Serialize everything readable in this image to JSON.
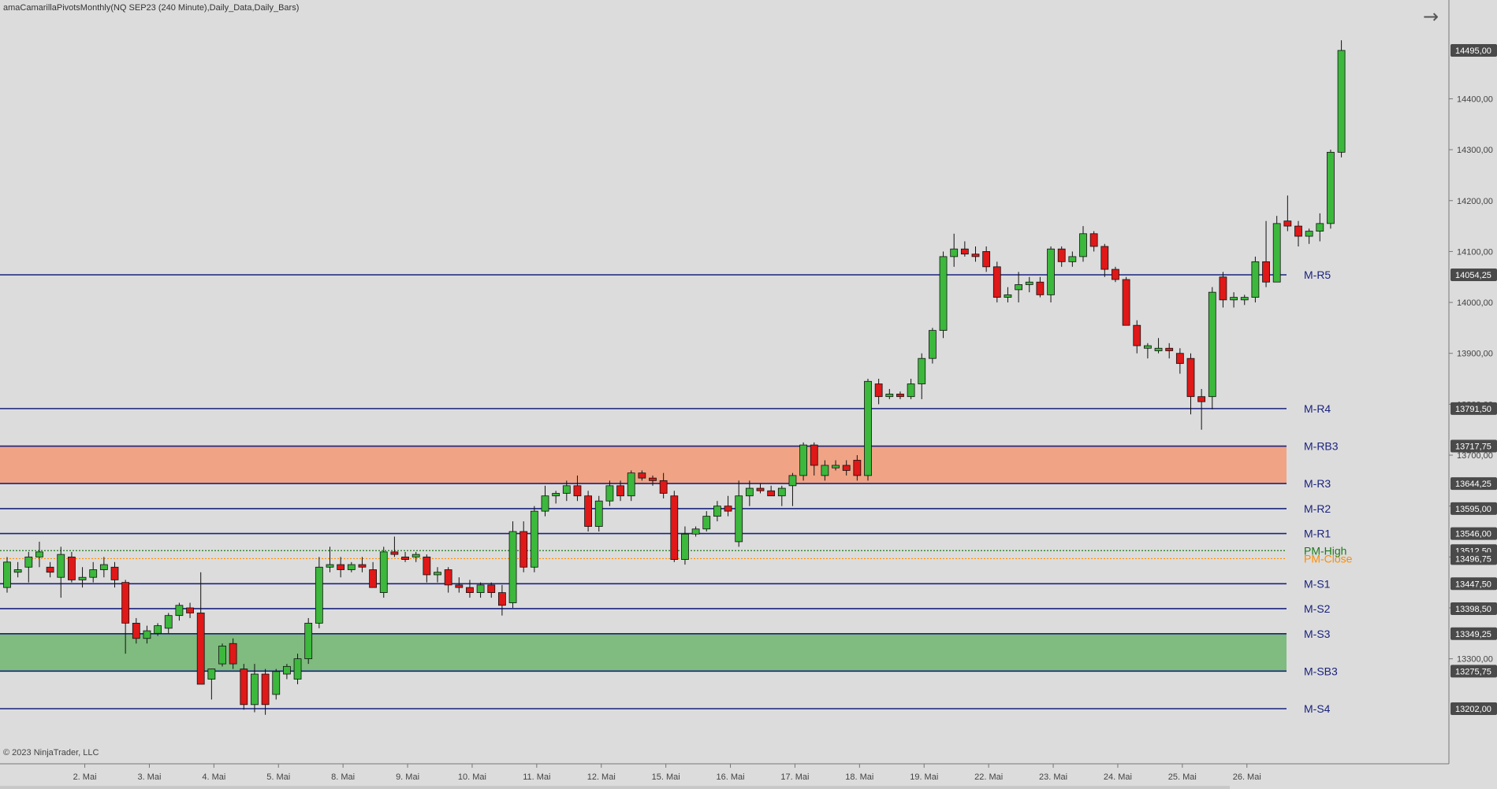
{
  "window": {
    "title": "amaCamarillaPivotsMonthly(NQ SEP23 (240 Minute),Daily_Data,Daily_Bars)",
    "copyright": "© 2023 NinjaTrader, LLC"
  },
  "icons": {
    "forward": "arrow-right-icon"
  },
  "colors": {
    "background": "#dcdcdc",
    "up_candle": "#3cb83c",
    "down_candle": "#e01818",
    "pivot_line": "#1a237e",
    "pivot_label": "#1a237e",
    "resistance_band": "#f0a080",
    "support_band": "#7ab87a",
    "pm_high": "#1a7a1a",
    "pm_close": "#ff8c00"
  },
  "chart_data": {
    "type": "candlestick",
    "title": "amaCamarillaPivotsMonthly(NQ SEP23 (240 Minute),Daily_Data,Daily_Bars)",
    "ylim": [
      13100,
      14560
    ],
    "y_ticks": [
      "13300,00",
      "13400,00",
      "13500,00",
      "13600,00",
      "13700,00",
      "13800,00",
      "13900,00",
      "14000,00",
      "14100,00",
      "14200,00",
      "14300,00",
      "14400,00"
    ],
    "y_tick_values": [
      13300,
      13400,
      13500,
      13600,
      13700,
      13800,
      13900,
      14000,
      14100,
      14200,
      14300,
      14400
    ],
    "x_ticks": [
      "2. Mai",
      "3. Mai",
      "4. Mai",
      "5. Mai",
      "8. Mai",
      "9. Mai",
      "10. Mai",
      "11. Mai",
      "12. Mai",
      "15. Mai",
      "16. Mai",
      "17. Mai",
      "18. Mai",
      "19. Mai",
      "22. Mai",
      "23. Mai",
      "24. Mai",
      "25. Mai",
      "26. Mai"
    ],
    "x_tick_bar_index": [
      7,
      13,
      19,
      25,
      31,
      37,
      43,
      49,
      55,
      61,
      67,
      73,
      79,
      85,
      91,
      97,
      103,
      109,
      115
    ],
    "levels": [
      {
        "name": "M-R5",
        "value": 14054.25,
        "price_label": "14054,25",
        "kind": "line"
      },
      {
        "name": "M-R4",
        "value": 13791.5,
        "price_label": "13791,50",
        "kind": "line"
      },
      {
        "name": "M-RB3",
        "value": 13717.75,
        "price_label": "13717,75",
        "kind": "line"
      },
      {
        "name": "M-R3",
        "value": 13644.25,
        "price_label": "13644,25",
        "kind": "line"
      },
      {
        "name": "M-R2",
        "value": 13595.0,
        "price_label": "13595,00",
        "kind": "line"
      },
      {
        "name": "M-R1",
        "value": 13546.0,
        "price_label": "13546,00",
        "kind": "line"
      },
      {
        "name": "PM-High",
        "value": 13512.5,
        "price_label": "13512,50",
        "kind": "dotted-green"
      },
      {
        "name": "PM-Close",
        "value": 13496.75,
        "price_label": "13496,75",
        "kind": "dotted-orange"
      },
      {
        "name": "M-S1",
        "value": 13447.5,
        "price_label": "13447,50",
        "kind": "line"
      },
      {
        "name": "M-S2",
        "value": 13398.5,
        "price_label": "13398,50",
        "kind": "line"
      },
      {
        "name": "M-S3",
        "value": 13349.25,
        "price_label": "13349,25",
        "kind": "line"
      },
      {
        "name": "M-SB3",
        "value": 13275.75,
        "price_label": "13275,75",
        "kind": "line"
      },
      {
        "name": "M-S4",
        "value": 13202.0,
        "price_label": "13202,00",
        "kind": "line"
      }
    ],
    "bands": [
      {
        "from": 13644.25,
        "to": 13717.75,
        "kind": "resistance"
      },
      {
        "from": 13275.75,
        "to": 13349.25,
        "kind": "support"
      }
    ],
    "last_price": {
      "value": 14495.0,
      "label": "14495,00"
    },
    "candles": [
      [
        13440,
        13500,
        13430,
        13490
      ],
      [
        13470,
        13490,
        13460,
        13475
      ],
      [
        13480,
        13510,
        13450,
        13500
      ],
      [
        13500,
        13530,
        13480,
        13510
      ],
      [
        13480,
        13490,
        13460,
        13470
      ],
      [
        13460,
        13520,
        13420,
        13505
      ],
      [
        13500,
        13510,
        13450,
        13455
      ],
      [
        13455,
        13480,
        13440,
        13460
      ],
      [
        13460,
        13490,
        13450,
        13475
      ],
      [
        13475,
        13500,
        13460,
        13485
      ],
      [
        13480,
        13490,
        13440,
        13455
      ],
      [
        13450,
        13455,
        13310,
        13370
      ],
      [
        13370,
        13380,
        13330,
        13340
      ],
      [
        13340,
        13365,
        13330,
        13355
      ],
      [
        13350,
        13370,
        13345,
        13365
      ],
      [
        13360,
        13390,
        13350,
        13385
      ],
      [
        13385,
        13410,
        13375,
        13405
      ],
      [
        13400,
        13410,
        13380,
        13390
      ],
      [
        13390,
        13470,
        13250,
        13250
      ],
      [
        13260,
        13280,
        13220,
        13280
      ],
      [
        13290,
        13330,
        13285,
        13325
      ],
      [
        13330,
        13340,
        13280,
        13290
      ],
      [
        13280,
        13290,
        13200,
        13210
      ],
      [
        13210,
        13290,
        13195,
        13270
      ],
      [
        13270,
        13280,
        13190,
        13210
      ],
      [
        13230,
        13280,
        13220,
        13275
      ],
      [
        13270,
        13290,
        13260,
        13285
      ],
      [
        13260,
        13310,
        13250,
        13300
      ],
      [
        13300,
        13380,
        13290,
        13370
      ],
      [
        13370,
        13500,
        13360,
        13480
      ],
      [
        13480,
        13520,
        13470,
        13485
      ],
      [
        13485,
        13500,
        13460,
        13475
      ],
      [
        13475,
        13490,
        13470,
        13485
      ],
      [
        13485,
        13500,
        13470,
        13480
      ],
      [
        13475,
        13490,
        13440,
        13440
      ],
      [
        13430,
        13520,
        13420,
        13510
      ],
      [
        13510,
        13540,
        13500,
        13505
      ],
      [
        13500,
        13510,
        13490,
        13495
      ],
      [
        13500,
        13510,
        13490,
        13505
      ],
      [
        13500,
        13505,
        13450,
        13465
      ],
      [
        13465,
        13480,
        13450,
        13470
      ],
      [
        13475,
        13480,
        13430,
        13445
      ],
      [
        13445,
        13460,
        13430,
        13440
      ],
      [
        13440,
        13455,
        13420,
        13430
      ],
      [
        13430,
        13450,
        13420,
        13445
      ],
      [
        13445,
        13450,
        13420,
        13430
      ],
      [
        13430,
        13445,
        13385,
        13405
      ],
      [
        13410,
        13570,
        13400,
        13550
      ],
      [
        13550,
        13570,
        13470,
        13480
      ],
      [
        13480,
        13600,
        13470,
        13590
      ],
      [
        13590,
        13640,
        13580,
        13620
      ],
      [
        13620,
        13630,
        13605,
        13625
      ],
      [
        13625,
        13650,
        13610,
        13640
      ],
      [
        13640,
        13660,
        13610,
        13620
      ],
      [
        13620,
        13630,
        13550,
        13560
      ],
      [
        13560,
        13620,
        13550,
        13610
      ],
      [
        13610,
        13650,
        13600,
        13640
      ],
      [
        13640,
        13650,
        13610,
        13620
      ],
      [
        13620,
        13670,
        13610,
        13665
      ],
      [
        13665,
        13670,
        13650,
        13655
      ],
      [
        13655,
        13660,
        13640,
        13650
      ],
      [
        13650,
        13665,
        13615,
        13625
      ],
      [
        13620,
        13630,
        13490,
        13495
      ],
      [
        13495,
        13560,
        13485,
        13545
      ],
      [
        13545,
        13560,
        13540,
        13555
      ],
      [
        13555,
        13590,
        13550,
        13580
      ],
      [
        13580,
        13610,
        13570,
        13600
      ],
      [
        13600,
        13620,
        13580,
        13590
      ],
      [
        13530,
        13650,
        13520,
        13620
      ],
      [
        13620,
        13650,
        13600,
        13635
      ],
      [
        13635,
        13645,
        13625,
        13630
      ],
      [
        13630,
        13640,
        13620,
        13620
      ],
      [
        13620,
        13640,
        13600,
        13635
      ],
      [
        13640,
        13665,
        13600,
        13660
      ],
      [
        13660,
        13725,
        13650,
        13720
      ],
      [
        13720,
        13725,
        13660,
        13680
      ],
      [
        13660,
        13690,
        13650,
        13680
      ],
      [
        13675,
        13690,
        13670,
        13680
      ],
      [
        13680,
        13690,
        13660,
        13670
      ],
      [
        13690,
        13700,
        13650,
        13660
      ],
      [
        13660,
        13850,
        13650,
        13845
      ],
      [
        13840,
        13850,
        13800,
        13815
      ],
      [
        13815,
        13830,
        13810,
        13820
      ],
      [
        13820,
        13825,
        13810,
        13815
      ],
      [
        13815,
        13850,
        13810,
        13840
      ],
      [
        13840,
        13900,
        13810,
        13890
      ],
      [
        13890,
        13950,
        13880,
        13945
      ],
      [
        13945,
        14100,
        13930,
        14090
      ],
      [
        14090,
        14135,
        14070,
        14105
      ],
      [
        14105,
        14120,
        14090,
        14095
      ],
      [
        14095,
        14110,
        14080,
        14090
      ],
      [
        14100,
        14110,
        14060,
        14070
      ],
      [
        14070,
        14080,
        14000,
        14010
      ],
      [
        14010,
        14030,
        14000,
        14015
      ],
      [
        14025,
        14060,
        14000,
        14035
      ],
      [
        14035,
        14050,
        14020,
        14040
      ],
      [
        14040,
        14050,
        14010,
        14015
      ],
      [
        14015,
        14110,
        14000,
        14105
      ],
      [
        14105,
        14110,
        14070,
        14080
      ],
      [
        14080,
        14100,
        14070,
        14090
      ],
      [
        14090,
        14150,
        14080,
        14135
      ],
      [
        14135,
        14140,
        14100,
        14110
      ],
      [
        14110,
        14115,
        14050,
        14065
      ],
      [
        14065,
        14070,
        14040,
        14045
      ],
      [
        14045,
        14050,
        13960,
        13955
      ],
      [
        13955,
        13965,
        13900,
        13915
      ],
      [
        13910,
        13920,
        13890,
        13915
      ],
      [
        13905,
        13930,
        13900,
        13910
      ],
      [
        13910,
        13920,
        13890,
        13905
      ],
      [
        13900,
        13910,
        13860,
        13880
      ],
      [
        13890,
        13900,
        13780,
        13815
      ],
      [
        13815,
        13830,
        13750,
        13805
      ],
      [
        13815,
        14030,
        13790,
        14020
      ],
      [
        14050,
        14060,
        13990,
        14005
      ],
      [
        14005,
        14020,
        13990,
        14010
      ],
      [
        14005,
        14015,
        13995,
        14010
      ],
      [
        14010,
        14090,
        14000,
        14080
      ],
      [
        14080,
        14160,
        14030,
        14040
      ],
      [
        14040,
        14170,
        14040,
        14155
      ],
      [
        14160,
        14210,
        14140,
        14150
      ],
      [
        14150,
        14160,
        14110,
        14130
      ],
      [
        14130,
        14145,
        14115,
        14140
      ],
      [
        14140,
        14175,
        14120,
        14155
      ],
      [
        14155,
        14300,
        14145,
        14295
      ],
      [
        14295,
        14515,
        14285,
        14495
      ]
    ]
  }
}
